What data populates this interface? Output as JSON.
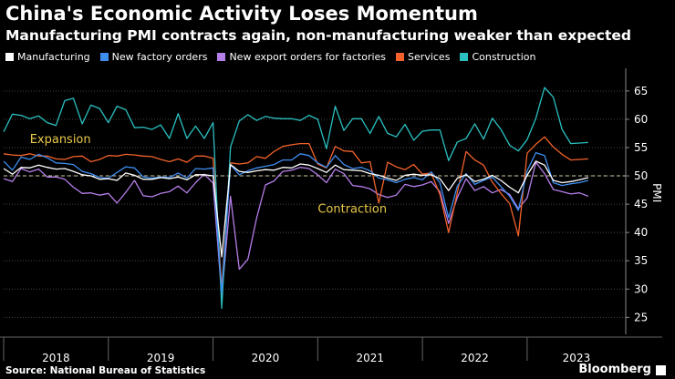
{
  "title": "China's Economic Activity Loses Momentum",
  "subtitle": "Manufacturing PMI contracts again, non-manufacturing weaker than expected",
  "source": "Source: National Bureau of Statistics",
  "brand": "Bloomberg",
  "colors": {
    "Manufacturing": "#ffffff",
    "New factory orders": "#3d8ef0",
    "New export orders for factories": "#b57ee8",
    "Services": "#f2622a",
    "Construction": "#2bbfc0",
    "annotation": "#e8c84a",
    "grid": "#444444",
    "reference": "#cfc9a8"
  },
  "chart_data": {
    "type": "line",
    "ylabel": "PMI",
    "ylim": [
      22,
      69
    ],
    "yticks": [
      25,
      30,
      35,
      40,
      45,
      50,
      55,
      60,
      65
    ],
    "reference_line": 50,
    "annotations": [
      {
        "text": "Expansion",
        "x": "2018-04",
        "y": 55.8
      },
      {
        "text": "Contraction",
        "x": "2021-01",
        "y": 43.5
      }
    ],
    "year_labels": [
      "2018",
      "2019",
      "2020",
      "2021",
      "2022",
      "2023"
    ],
    "x_start": "2018-01",
    "x_end": "2023-08",
    "series": [
      {
        "name": "Manufacturing",
        "values": [
          51.3,
          50.3,
          51.5,
          51.4,
          51.9,
          51.5,
          51.2,
          51.3,
          50.8,
          50.2,
          50.0,
          49.4,
          49.5,
          49.2,
          50.5,
          50.1,
          49.4,
          49.4,
          49.7,
          49.5,
          49.8,
          49.3,
          50.2,
          50.2,
          50.0,
          35.7,
          52.0,
          50.8,
          50.6,
          50.9,
          51.1,
          51.0,
          51.5,
          51.4,
          52.1,
          51.9,
          51.3,
          50.6,
          51.9,
          51.1,
          51.0,
          50.9,
          50.4,
          50.1,
          49.6,
          49.2,
          50.1,
          50.3,
          50.1,
          50.2,
          49.5,
          47.4,
          49.6,
          50.2,
          49.0,
          49.4,
          50.1,
          49.2,
          48.0,
          47.0,
          50.1,
          52.6,
          51.9,
          49.2,
          48.8,
          49.0,
          49.3,
          49.7
        ]
      },
      {
        "name": "New factory orders",
        "values": [
          52.6,
          51.0,
          53.3,
          52.9,
          53.8,
          53.2,
          52.3,
          52.2,
          52.0,
          50.8,
          50.4,
          49.7,
          49.6,
          50.6,
          51.6,
          51.4,
          49.8,
          49.6,
          49.8,
          49.7,
          50.5,
          49.6,
          51.3,
          51.2,
          51.4,
          29.3,
          52.0,
          50.2,
          50.9,
          51.4,
          51.7,
          52.0,
          52.8,
          52.8,
          53.9,
          53.6,
          52.3,
          51.5,
          53.6,
          52.0,
          51.3,
          51.5,
          50.9,
          49.6,
          49.3,
          48.8,
          49.4,
          49.7,
          49.3,
          50.7,
          48.8,
          42.6,
          48.2,
          50.4,
          48.5,
          49.2,
          49.8,
          48.1,
          46.4,
          43.9,
          50.9,
          54.1,
          53.6,
          48.8,
          48.3,
          48.6,
          48.8,
          49.2
        ]
      },
      {
        "name": "New export orders for factories",
        "values": [
          49.5,
          49.0,
          51.3,
          50.7,
          51.2,
          49.8,
          49.8,
          49.4,
          48.0,
          46.9,
          47.0,
          46.6,
          46.9,
          45.2,
          47.1,
          49.2,
          46.5,
          46.3,
          46.9,
          47.2,
          48.2,
          47.0,
          48.8,
          50.3,
          48.7,
          28.7,
          46.4,
          33.5,
          35.3,
          42.6,
          48.4,
          49.1,
          50.8,
          51.0,
          51.5,
          51.3,
          50.2,
          48.8,
          51.2,
          50.4,
          48.3,
          48.1,
          47.7,
          46.7,
          46.2,
          46.6,
          48.5,
          48.1,
          48.4,
          49.0,
          47.2,
          41.6,
          46.2,
          49.5,
          47.4,
          48.1,
          47.0,
          47.6,
          46.7,
          44.2,
          46.1,
          52.4,
          50.4,
          47.6,
          47.2,
          46.8,
          47.0,
          46.4
        ]
      },
      {
        "name": "Services",
        "values": [
          53.9,
          53.7,
          53.6,
          53.9,
          53.5,
          53.5,
          53.0,
          52.9,
          53.4,
          53.5,
          52.5,
          52.9,
          53.6,
          53.5,
          53.8,
          53.7,
          53.5,
          53.4,
          52.9,
          52.5,
          53.0,
          52.4,
          53.5,
          53.5,
          53.1,
          30.1,
          52.3,
          52.1,
          52.3,
          53.4,
          53.1,
          54.3,
          55.2,
          55.5,
          55.7,
          55.7,
          52.1,
          51.4,
          55.2,
          54.4,
          54.3,
          52.3,
          52.5,
          45.2,
          52.4,
          51.6,
          51.1,
          52.0,
          50.3,
          50.5,
          46.7,
          40.0,
          47.1,
          54.3,
          52.8,
          51.9,
          48.9,
          46.9,
          45.1,
          39.4,
          54.0,
          55.6,
          56.9,
          55.1,
          53.8,
          52.8,
          52.9,
          53.0
        ]
      },
      {
        "name": "Construction",
        "values": [
          57.8,
          60.9,
          60.7,
          60.1,
          60.6,
          59.4,
          58.9,
          63.3,
          63.7,
          59.2,
          62.5,
          61.9,
          59.4,
          62.3,
          61.7,
          58.5,
          58.6,
          58.2,
          59.0,
          56.6,
          61.0,
          56.6,
          58.8,
          56.6,
          59.4,
          26.6,
          55.1,
          59.7,
          60.8,
          59.8,
          60.5,
          60.2,
          60.1,
          60.1,
          59.8,
          60.7,
          60.0,
          54.8,
          62.3,
          58.0,
          60.1,
          60.1,
          57.5,
          60.5,
          57.5,
          56.9,
          59.1,
          56.3,
          57.9,
          58.1,
          58.1,
          52.7,
          56.0,
          56.6,
          59.2,
          56.5,
          60.2,
          58.2,
          55.4,
          54.4,
          56.4,
          60.2,
          65.6,
          63.9,
          58.2,
          55.7,
          55.8,
          55.9
        ]
      }
    ]
  }
}
